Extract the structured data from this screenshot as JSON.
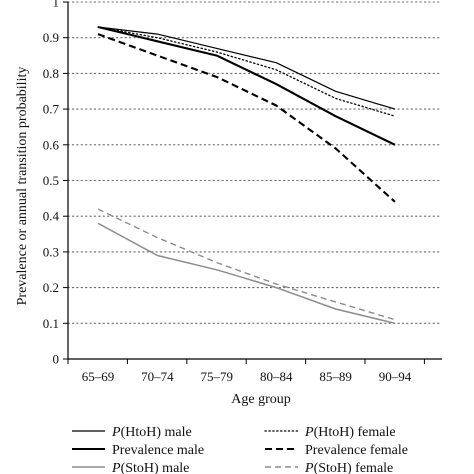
{
  "chart_data": {
    "type": "line",
    "title": "",
    "xlabel": "Age group",
    "ylabel": "Prevalence or annual transition probability",
    "categories": [
      "65–69",
      "70–74",
      "75–79",
      "80–84",
      "85–89",
      "90–94"
    ],
    "ylim": [
      0,
      1
    ],
    "yticks": [
      "0",
      "0.1",
      "0.2",
      "0.3",
      "0.4",
      "0.5",
      "0.6",
      "0.7",
      "0.8",
      "0.9",
      "1"
    ],
    "grid": "horizontal dotted",
    "legend_position": "bottom",
    "series": [
      {
        "name": "P(HtoH) male",
        "name_prefix": "P",
        "name_rest": "(HtoH) male",
        "color": "#000000",
        "style": "solid-thin",
        "values": [
          0.93,
          0.91,
          0.87,
          0.83,
          0.75,
          0.7
        ]
      },
      {
        "name": "P(HtoH) female",
        "name_prefix": "P",
        "name_rest": "(HtoH) female",
        "color": "#000000",
        "style": "dotted",
        "values": [
          0.93,
          0.9,
          0.86,
          0.81,
          0.73,
          0.68
        ]
      },
      {
        "name": "Prevalence male",
        "name_prefix": "",
        "name_rest": "Prevalence male",
        "color": "#000000",
        "style": "solid-thick",
        "values": [
          0.93,
          0.89,
          0.85,
          0.77,
          0.68,
          0.6
        ]
      },
      {
        "name": "Prevalence female",
        "name_prefix": "",
        "name_rest": "Prevalence female",
        "color": "#000000",
        "style": "dashed-thick",
        "values": [
          0.91,
          0.85,
          0.79,
          0.71,
          0.59,
          0.44
        ]
      },
      {
        "name": "P(StoH) male",
        "name_prefix": "P",
        "name_rest": "(StoH) male",
        "color": "#8c8c8c",
        "style": "solid-gray",
        "values": [
          0.38,
          0.29,
          0.25,
          0.2,
          0.14,
          0.1
        ]
      },
      {
        "name": "P(StoH) female",
        "name_prefix": "P",
        "name_rest": "(StoH) female",
        "color": "#8c8c8c",
        "style": "dashed-gray",
        "values": [
          0.42,
          0.34,
          0.27,
          0.21,
          0.16,
          0.11
        ]
      }
    ]
  }
}
